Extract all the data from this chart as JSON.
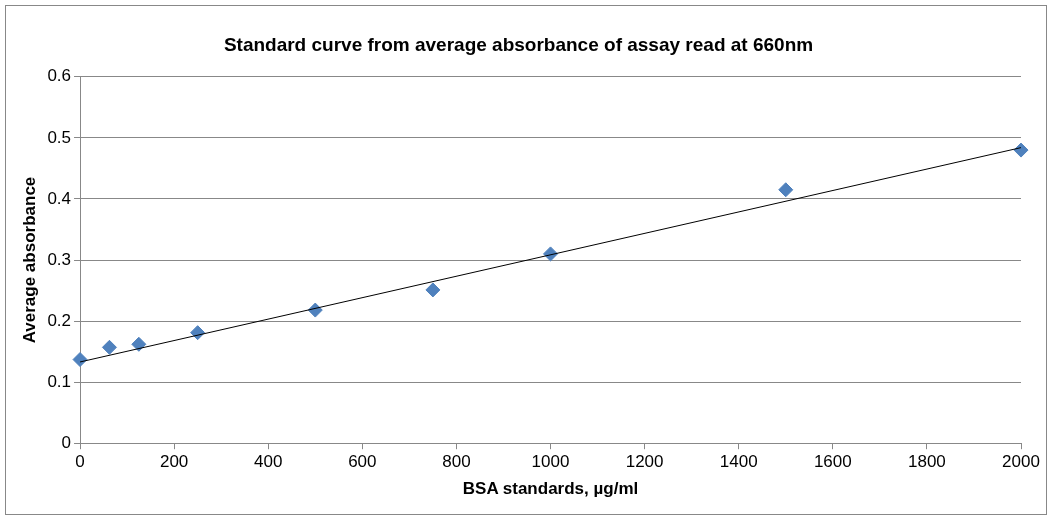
{
  "chart_data": {
    "type": "scatter",
    "title": "Standard curve from average absorbance of assay read at 660nm",
    "xlabel": "BSA standards, µg/ml",
    "ylabel": "Average absorbance",
    "xlim": [
      0,
      2000
    ],
    "xticks": [
      0,
      200,
      400,
      600,
      800,
      1000,
      1200,
      1400,
      1600,
      1800,
      2000
    ],
    "ylim": [
      0,
      0.6
    ],
    "yticks": [
      0,
      0.1,
      0.2,
      0.3,
      0.4,
      0.5,
      0.6
    ],
    "grid": "y",
    "legend": false,
    "marker": "diamond",
    "series": [
      {
        "color": "#4f81bd",
        "x": [
          0,
          62.5,
          125,
          250,
          500,
          750,
          1000,
          1500,
          2000
        ],
        "values": [
          0.137,
          0.157,
          0.162,
          0.181,
          0.218,
          0.251,
          0.31,
          0.415,
          0.48
        ]
      },
      {
        "type": "line",
        "color": "#000000",
        "marker": "none",
        "x": [
          0,
          2000
        ],
        "values": [
          0.133,
          0.484
        ]
      }
    ]
  }
}
